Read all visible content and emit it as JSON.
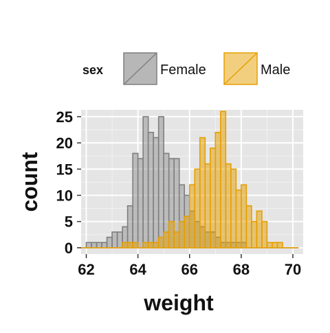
{
  "chart_data": {
    "type": "histogram",
    "xlabel": "weight",
    "ylabel": "count",
    "xlim": [
      61.8,
      70.4
    ],
    "ylim": [
      -1.2,
      26.3
    ],
    "x_ticks": [
      62,
      64,
      66,
      68,
      70
    ],
    "y_ticks": [
      0,
      5,
      10,
      15,
      20,
      25
    ],
    "grid": true,
    "legend": {
      "title": "sex",
      "position": "top",
      "entries": [
        "Female",
        "Male"
      ]
    },
    "bin_width": 0.2,
    "series": [
      {
        "name": "Female",
        "fill": "#999999",
        "stroke": "#7f7f7f",
        "bins": [
          {
            "x0": 61.8,
            "count": 0
          },
          {
            "x0": 62.0,
            "count": 1
          },
          {
            "x0": 62.2,
            "count": 1
          },
          {
            "x0": 62.4,
            "count": 1
          },
          {
            "x0": 62.6,
            "count": 1
          },
          {
            "x0": 62.8,
            "count": 2
          },
          {
            "x0": 63.0,
            "count": 3
          },
          {
            "x0": 63.2,
            "count": 3
          },
          {
            "x0": 63.4,
            "count": 4
          },
          {
            "x0": 63.6,
            "count": 8
          },
          {
            "x0": 63.8,
            "count": 18
          },
          {
            "x0": 64.0,
            "count": 17
          },
          {
            "x0": 64.2,
            "count": 25
          },
          {
            "x0": 64.4,
            "count": 22
          },
          {
            "x0": 64.6,
            "count": 21
          },
          {
            "x0": 64.8,
            "count": 25
          },
          {
            "x0": 65.0,
            "count": 18
          },
          {
            "x0": 65.2,
            "count": 17
          },
          {
            "x0": 65.4,
            "count": 17
          },
          {
            "x0": 65.6,
            "count": 12
          },
          {
            "x0": 65.8,
            "count": 10
          },
          {
            "x0": 66.0,
            "count": 7
          },
          {
            "x0": 66.2,
            "count": 5
          },
          {
            "x0": 66.4,
            "count": 4
          },
          {
            "x0": 66.6,
            "count": 3
          },
          {
            "x0": 66.8,
            "count": 3
          },
          {
            "x0": 67.0,
            "count": 2
          },
          {
            "x0": 67.2,
            "count": 1
          },
          {
            "x0": 67.4,
            "count": 1
          },
          {
            "x0": 67.6,
            "count": 1
          },
          {
            "x0": 67.8,
            "count": 1
          },
          {
            "x0": 68.0,
            "count": 1
          },
          {
            "x0": 68.2,
            "count": 0
          },
          {
            "x0": 68.4,
            "count": 0
          },
          {
            "x0": 68.6,
            "count": 0
          },
          {
            "x0": 68.8,
            "count": 0
          },
          {
            "x0": 69.0,
            "count": 0
          },
          {
            "x0": 69.2,
            "count": 0
          },
          {
            "x0": 69.4,
            "count": 0
          },
          {
            "x0": 69.6,
            "count": 0
          },
          {
            "x0": 69.8,
            "count": 0
          },
          {
            "x0": 70.0,
            "count": 0
          }
        ]
      },
      {
        "name": "Male",
        "fill": "#E69F00",
        "stroke": "#E69F00",
        "bins": [
          {
            "x0": 61.8,
            "count": 0
          },
          {
            "x0": 62.0,
            "count": 0
          },
          {
            "x0": 62.2,
            "count": 0
          },
          {
            "x0": 62.4,
            "count": 0
          },
          {
            "x0": 62.6,
            "count": 0
          },
          {
            "x0": 62.8,
            "count": 0
          },
          {
            "x0": 63.0,
            "count": 0
          },
          {
            "x0": 63.2,
            "count": 0
          },
          {
            "x0": 63.4,
            "count": 1
          },
          {
            "x0": 63.6,
            "count": 1
          },
          {
            "x0": 63.8,
            "count": 1
          },
          {
            "x0": 64.0,
            "count": 0
          },
          {
            "x0": 64.2,
            "count": 1
          },
          {
            "x0": 64.4,
            "count": 1
          },
          {
            "x0": 64.6,
            "count": 1
          },
          {
            "x0": 64.8,
            "count": 2
          },
          {
            "x0": 65.0,
            "count": 3
          },
          {
            "x0": 65.2,
            "count": 5
          },
          {
            "x0": 65.4,
            "count": 3
          },
          {
            "x0": 65.6,
            "count": 5
          },
          {
            "x0": 65.8,
            "count": 6
          },
          {
            "x0": 66.0,
            "count": 12
          },
          {
            "x0": 66.2,
            "count": 15
          },
          {
            "x0": 66.4,
            "count": 21
          },
          {
            "x0": 66.6,
            "count": 16
          },
          {
            "x0": 66.8,
            "count": 19
          },
          {
            "x0": 67.0,
            "count": 22
          },
          {
            "x0": 67.2,
            "count": 26
          },
          {
            "x0": 67.4,
            "count": 16
          },
          {
            "x0": 67.6,
            "count": 15
          },
          {
            "x0": 67.8,
            "count": 11
          },
          {
            "x0": 68.0,
            "count": 12
          },
          {
            "x0": 68.2,
            "count": 8
          },
          {
            "x0": 68.4,
            "count": 5
          },
          {
            "x0": 68.6,
            "count": 7
          },
          {
            "x0": 68.8,
            "count": 5
          },
          {
            "x0": 69.0,
            "count": 1
          },
          {
            "x0": 69.2,
            "count": 1
          },
          {
            "x0": 69.4,
            "count": 1
          },
          {
            "x0": 69.6,
            "count": 0
          },
          {
            "x0": 69.8,
            "count": 0
          },
          {
            "x0": 70.0,
            "count": 0
          }
        ]
      }
    ]
  }
}
